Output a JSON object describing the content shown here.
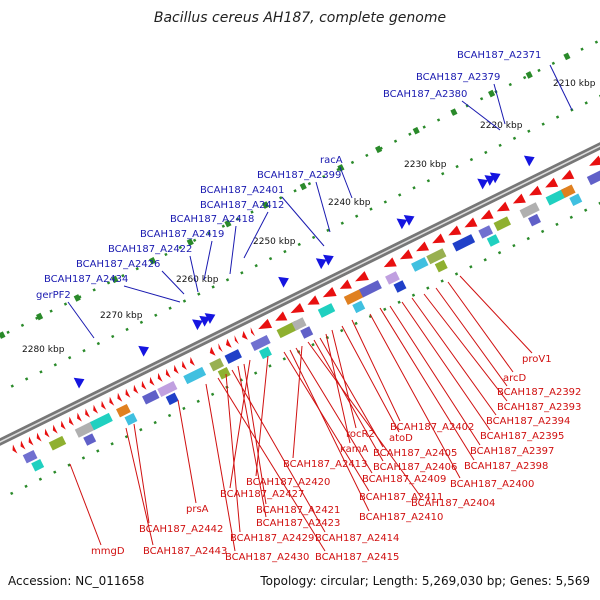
{
  "title": "Bacillus cereus AH187, complete genome",
  "footer": {
    "accession": "Accession: NC_011658",
    "summary": "Topology: circular; Length: 5,269,030 bp; Genes: 5,569"
  },
  "colors": {
    "forward_gene": "#1515e0",
    "reverse_gene": "#e81010",
    "forward_label": "#1a1ab0",
    "reverse_label": "#d01010",
    "backbone": "#777777",
    "tick": "#2a8a2a"
  },
  "scale_ticks": [
    "2210 kbp",
    "2220 kbp",
    "2230 kbp",
    "2240 kbp",
    "2250 kbp",
    "2260 kbp",
    "2270 kbp",
    "2280 kbp"
  ],
  "forward_labels": [
    "BCAH187_A2371",
    "BCAH187_A2379",
    "BCAH187_A2380",
    "racA",
    "BCAH187_A2399",
    "BCAH187_A2401",
    "BCAH187_A2412",
    "BCAH187_A2418",
    "BCAH187_A2419",
    "BCAH187_A2422",
    "BCAH187_A2426",
    "BCAH187_A2434",
    "gerPF2"
  ],
  "reverse_labels": [
    "proV1",
    "arcD",
    "BCAH187_A2392",
    "BCAH187_A2393",
    "BCAH187_A2394",
    "BCAH187_A2395",
    "BCAH187_A2397",
    "BCAH187_A2398",
    "BCAH187_A2400",
    "BCAH187_A2402",
    "atoD",
    "rocR2",
    "kamA",
    "BCAH187_A2405",
    "BCAH187_A2406",
    "BCAH187_A2404",
    "BCAH187_A2413",
    "BCAH187_A2409",
    "BCAH187_A2410",
    "BCAH187_A2411",
    "BCAH187_A2420",
    "BCAH187_A2427",
    "BCAH187_A2421",
    "BCAH187_A2423",
    "BCAH187_A2414",
    "BCAH187_A2429",
    "BCAH187_A2415",
    "BCAH187_A2430",
    "prsA",
    "BCAH187_A2442",
    "BCAH187_A2443",
    "mmgD"
  ]
}
